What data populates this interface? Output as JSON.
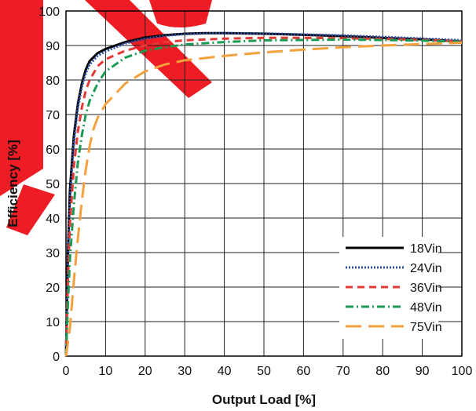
{
  "chart_data": {
    "type": "line",
    "title": "",
    "xlabel": "Output Load [%]",
    "ylabel": "Efficiency [%]",
    "xlim": [
      0,
      100
    ],
    "ylim": [
      0,
      100
    ],
    "x_ticks": [
      "0",
      "10",
      "20",
      "30",
      "40",
      "50",
      "60",
      "70",
      "80",
      "90",
      "100"
    ],
    "y_ticks": [
      "0",
      "10",
      "20",
      "30",
      "40",
      "50",
      "60",
      "70",
      "80",
      "90",
      "100"
    ],
    "grid": true,
    "legend_position": "bottom-right",
    "watermark_color": "#ee1c24",
    "series": [
      {
        "name": "18Vin",
        "color": "#000000",
        "style": "solid",
        "points": [
          [
            0,
            0
          ],
          [
            0.5,
            30
          ],
          [
            1,
            48
          ],
          [
            2,
            64
          ],
          [
            3,
            73
          ],
          [
            4,
            79
          ],
          [
            5,
            83
          ],
          [
            6,
            85.5
          ],
          [
            8,
            87.8
          ],
          [
            10,
            89
          ],
          [
            15,
            91
          ],
          [
            20,
            92.3
          ],
          [
            25,
            93
          ],
          [
            30,
            93.4
          ],
          [
            35,
            93.6
          ],
          [
            40,
            93.6
          ],
          [
            50,
            93.4
          ],
          [
            60,
            93.1
          ],
          [
            70,
            92.7
          ],
          [
            80,
            92.2
          ],
          [
            90,
            91.8
          ],
          [
            100,
            91.2
          ]
        ]
      },
      {
        "name": "24Vin",
        "color": "#2a4fa8",
        "style": "dotted",
        "points": [
          [
            0,
            0
          ],
          [
            0.5,
            28
          ],
          [
            1,
            45
          ],
          [
            2,
            62
          ],
          [
            3,
            72
          ],
          [
            4,
            78
          ],
          [
            5,
            82
          ],
          [
            6,
            84.5
          ],
          [
            8,
            87
          ],
          [
            10,
            88.3
          ],
          [
            15,
            90.6
          ],
          [
            20,
            92
          ],
          [
            25,
            92.8
          ],
          [
            30,
            93.3
          ],
          [
            35,
            93.5
          ],
          [
            40,
            93.6
          ],
          [
            50,
            93.5
          ],
          [
            60,
            93.2
          ],
          [
            70,
            92.9
          ],
          [
            80,
            92.5
          ],
          [
            90,
            92
          ],
          [
            100,
            91.5
          ]
        ]
      },
      {
        "name": "36Vin",
        "color": "#e53935",
        "style": "dashed",
        "points": [
          [
            0,
            0
          ],
          [
            0.5,
            22
          ],
          [
            1,
            38
          ],
          [
            2,
            55
          ],
          [
            3,
            65
          ],
          [
            4,
            72
          ],
          [
            5,
            77
          ],
          [
            6,
            80
          ],
          [
            8,
            84
          ],
          [
            10,
            86
          ],
          [
            15,
            88.5
          ],
          [
            20,
            90
          ],
          [
            25,
            91
          ],
          [
            30,
            91.5
          ],
          [
            40,
            92
          ],
          [
            50,
            92.2
          ],
          [
            60,
            92.2
          ],
          [
            70,
            92.1
          ],
          [
            80,
            91.9
          ],
          [
            90,
            91.6
          ],
          [
            100,
            91.2
          ]
        ]
      },
      {
        "name": "48Vin",
        "color": "#1a9a52",
        "style": "dashdot",
        "points": [
          [
            0,
            0
          ],
          [
            0.5,
            15
          ],
          [
            1,
            28
          ],
          [
            2,
            44
          ],
          [
            3,
            56
          ],
          [
            4,
            64
          ],
          [
            5,
            70
          ],
          [
            6,
            74
          ],
          [
            8,
            79
          ],
          [
            10,
            82.5
          ],
          [
            15,
            86.5
          ],
          [
            20,
            88.5
          ],
          [
            25,
            89.5
          ],
          [
            30,
            90.3
          ],
          [
            40,
            91
          ],
          [
            50,
            91.5
          ],
          [
            60,
            91.6
          ],
          [
            70,
            91.7
          ],
          [
            80,
            91.6
          ],
          [
            90,
            91.4
          ],
          [
            100,
            91.1
          ]
        ]
      },
      {
        "name": "75Vin",
        "color": "#f4a03c",
        "style": "longdash",
        "points": [
          [
            0,
            0
          ],
          [
            1,
            8
          ],
          [
            2,
            22
          ],
          [
            3,
            34
          ],
          [
            4,
            45
          ],
          [
            5,
            54
          ],
          [
            6,
            61
          ],
          [
            7,
            66
          ],
          [
            8,
            69
          ],
          [
            10,
            73
          ],
          [
            15,
            79
          ],
          [
            20,
            82.5
          ],
          [
            25,
            84.5
          ],
          [
            30,
            85.7
          ],
          [
            40,
            87
          ],
          [
            50,
            88
          ],
          [
            60,
            88.8
          ],
          [
            70,
            89.5
          ],
          [
            80,
            90
          ],
          [
            90,
            90.4
          ],
          [
            100,
            90.8
          ]
        ]
      }
    ]
  }
}
